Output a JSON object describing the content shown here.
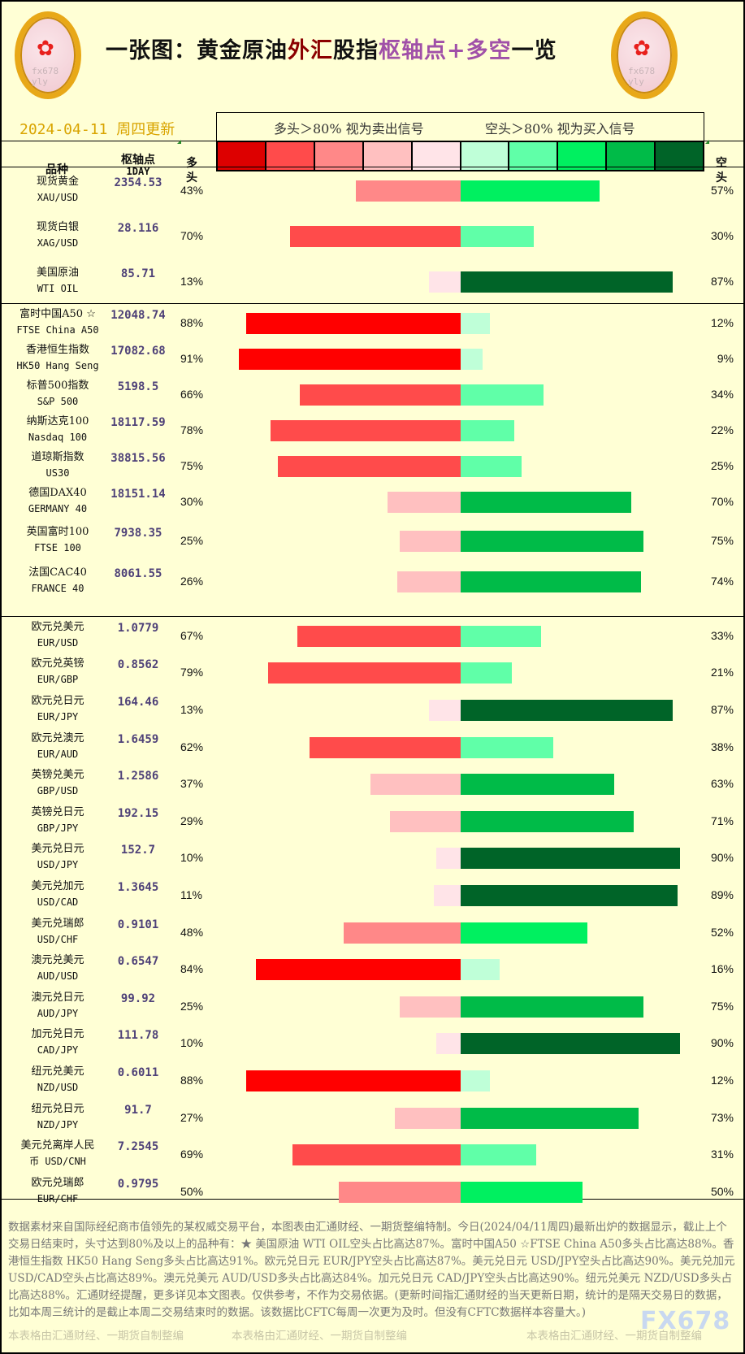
{
  "header": {
    "title_parts": [
      "一张图：黄金原油",
      "外汇",
      "股指",
      "枢轴点+多空",
      "一览"
    ],
    "date": "2024-04-11 周四更新",
    "logo_text": "fx678 yly",
    "legend_long": "多头＞80% 视为卖出信号",
    "legend_short": "空头＞80% 视为买入信号",
    "legend_colors": [
      "#dd0000",
      "#ff4b4b",
      "#ff8888",
      "#ffc0c0",
      "#ffe4e8",
      "#bfffd8",
      "#60ffa8",
      "#00f060",
      "#00bb48",
      "#006428"
    ]
  },
  "columns": {
    "name": "品种",
    "pivot": "枢轴点",
    "pivot_sub": "1DAY",
    "long": "多\n头",
    "short": "空\n头"
  },
  "rows": [
    {
      "cn": "现货黄金",
      "en": "XAU/USD",
      "pivot": "2354.53",
      "long": 43,
      "short": 57
    },
    {
      "cn": "现货白银",
      "en": "XAG/USD",
      "pivot": "28.116",
      "long": 70,
      "short": 30
    },
    {
      "cn": "美国原油",
      "en": "WTI OIL",
      "pivot": "85.71",
      "long": 13,
      "short": 87
    },
    {
      "cn": "富时中国A50 ☆",
      "en": "FTSE China A50",
      "pivot": "12048.74",
      "long": 88,
      "short": 12
    },
    {
      "cn": "香港恒生指数",
      "en": "HK50 Hang Seng",
      "pivot": "17082.68",
      "long": 91,
      "short": 9
    },
    {
      "cn": "标普500指数",
      "en": "S&P 500",
      "pivot": "5198.5",
      "long": 66,
      "short": 34
    },
    {
      "cn": "纳斯达克100",
      "en": "Nasdaq 100",
      "pivot": "18117.59",
      "long": 78,
      "short": 22
    },
    {
      "cn": "道琼斯指数",
      "en": "US30",
      "pivot": "38815.56",
      "long": 75,
      "short": 25
    },
    {
      "cn": "德国DAX40",
      "en": "GERMANY 40",
      "pivot": "18151.14",
      "long": 30,
      "short": 70
    },
    {
      "cn": "英国富时100",
      "en": "FTSE 100",
      "pivot": "7938.35",
      "long": 25,
      "short": 75
    },
    {
      "cn": "法国CAC40",
      "en": "FRANCE 40",
      "pivot": "8061.55",
      "long": 26,
      "short": 74
    },
    {
      "cn": "欧元兑美元",
      "en": "EUR/USD",
      "pivot": "1.0779",
      "long": 67,
      "short": 33
    },
    {
      "cn": "欧元兑英镑",
      "en": "EUR/GBP",
      "pivot": "0.8562",
      "long": 79,
      "short": 21
    },
    {
      "cn": "欧元兑日元",
      "en": "EUR/JPY",
      "pivot": "164.46",
      "long": 13,
      "short": 87
    },
    {
      "cn": "欧元兑澳元",
      "en": "EUR/AUD",
      "pivot": "1.6459",
      "long": 62,
      "short": 38
    },
    {
      "cn": "英镑兑美元",
      "en": "GBP/USD",
      "pivot": "1.2586",
      "long": 37,
      "short": 63
    },
    {
      "cn": "英镑兑日元",
      "en": "GBP/JPY",
      "pivot": "192.15",
      "long": 29,
      "short": 71
    },
    {
      "cn": "美元兑日元",
      "en": "USD/JPY",
      "pivot": "152.7",
      "long": 10,
      "short": 90
    },
    {
      "cn": "美元兑加元",
      "en": "USD/CAD",
      "pivot": "1.3645",
      "long": 11,
      "short": 89
    },
    {
      "cn": "美元兑瑞郎",
      "en": "USD/CHF",
      "pivot": "0.9101",
      "long": 48,
      "short": 52
    },
    {
      "cn": "澳元兑美元",
      "en": "AUD/USD",
      "pivot": "0.6547",
      "long": 84,
      "short": 16
    },
    {
      "cn": "澳元兑日元",
      "en": "AUD/JPY",
      "pivot": "99.92",
      "long": 25,
      "short": 75
    },
    {
      "cn": "加元兑日元",
      "en": "CAD/JPY",
      "pivot": "111.78",
      "long": 10,
      "short": 90
    },
    {
      "cn": "纽元兑美元",
      "en": "NZD/USD",
      "pivot": "0.6011",
      "long": 88,
      "short": 12
    },
    {
      "cn": "纽元兑日元",
      "en": "NZD/JPY",
      "pivot": "91.7",
      "long": 27,
      "short": 73
    },
    {
      "cn": "美元兑离岸人民",
      "en": "币    USD/CNH",
      "pivot": "7.2545",
      "long": 69,
      "short": 31
    },
    {
      "cn": "欧元兑瑞郎",
      "en": "EUR/CHF",
      "pivot": "0.9795",
      "long": 50,
      "short": 50
    }
  ],
  "footer": {
    "note": "数据素材来自国际经纪商市值领先的某权威交易平台，本图表由汇通财经、一期货整编特制。今日(2024/04/11周四)最新出炉的数据显示，截止上个交易日结束时，头寸达到80%及以上的品种有：★ 美国原油 WTI OIL空头占比高达87%。富时中国A50 ☆FTSE China A50多头占比高达88%。香港恒生指数 HK50 Hang Seng多头占比高达91%。欧元兑日元 EUR/JPY空头占比高达87%。美元兑日元 USD/JPY空头占比高达90%。美元兑加元 USD/CAD空头占比高达89%。澳元兑美元 AUD/USD多头占比高达84%。加元兑日元 CAD/JPY空头占比高达90%。纽元兑美元 NZD/USD多头占比高达88%。汇通财经提醒，更多详见本文图表。仅供参考，不作为交易依据。(更新时间指汇通财经的当天更新日期，统计的是隔天交易日的数据，比如本周三统计的是截止本周二交易结束时的数据。该数据比CFTC每周一次更为及时。但没有CFTC数据样本容量大。)",
    "credit": "本表格由汇通财经、一期货自制整编",
    "watermark": "FX678"
  }
}
